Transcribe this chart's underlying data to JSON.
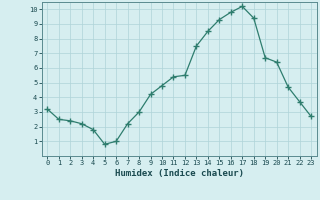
{
  "x": [
    0,
    1,
    2,
    3,
    4,
    5,
    6,
    7,
    8,
    9,
    10,
    11,
    12,
    13,
    14,
    15,
    16,
    17,
    18,
    19,
    20,
    21,
    22,
    23
  ],
  "y": [
    3.2,
    2.5,
    2.4,
    2.2,
    1.8,
    0.8,
    1.0,
    2.2,
    3.0,
    4.2,
    4.8,
    5.4,
    5.5,
    7.5,
    8.5,
    9.3,
    9.8,
    10.2,
    9.4,
    6.7,
    6.4,
    4.7,
    3.7,
    2.7
  ],
  "xlabel": "Humidex (Indice chaleur)",
  "line_color": "#2e7d6e",
  "marker": "+",
  "bg_color": "#d6eef0",
  "grid_color": "#afd4d8",
  "spine_color": "#5a8a90",
  "tick_label_color": "#1a4a50",
  "xlabel_color": "#1a4a50",
  "xlim": [
    -0.5,
    23.5
  ],
  "ylim": [
    0,
    10.5
  ],
  "yticks": [
    1,
    2,
    3,
    4,
    5,
    6,
    7,
    8,
    9,
    10
  ],
  "xticks": [
    0,
    1,
    2,
    3,
    4,
    5,
    6,
    7,
    8,
    9,
    10,
    11,
    12,
    13,
    14,
    15,
    16,
    17,
    18,
    19,
    20,
    21,
    22,
    23
  ],
  "tick_fontsize": 5.0,
  "xlabel_fontsize": 6.5
}
